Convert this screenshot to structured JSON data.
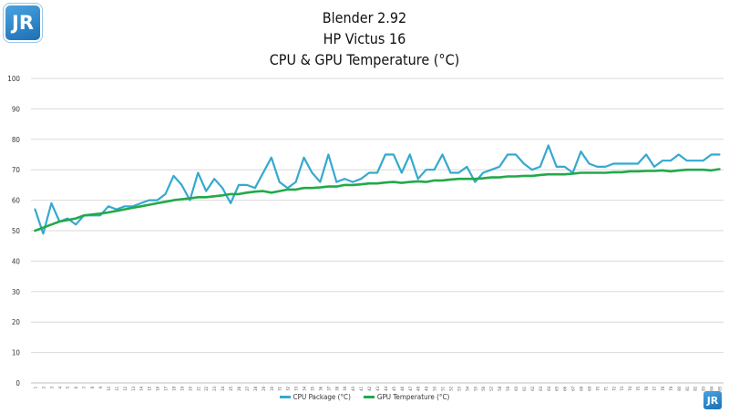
{
  "brand": {
    "logo_text": "JR",
    "logo_color": "#2a86cf"
  },
  "chart_data": {
    "type": "line",
    "title": [
      "Blender 2.92",
      "HP Victus 16",
      "CPU & GPU Temperature (°C)"
    ],
    "ylim": [
      0,
      100
    ],
    "yticks": [
      0,
      10,
      20,
      30,
      40,
      50,
      60,
      70,
      80,
      90,
      100
    ],
    "x": [
      1,
      2,
      3,
      4,
      5,
      6,
      7,
      8,
      9,
      10,
      11,
      12,
      13,
      14,
      15,
      16,
      17,
      18,
      19,
      20,
      21,
      22,
      23,
      24,
      25,
      26,
      27,
      28,
      29,
      30,
      31,
      32,
      33,
      34,
      35,
      36,
      37,
      38,
      39,
      40,
      41,
      42,
      43,
      44,
      45,
      46,
      47,
      48,
      49,
      50,
      51,
      52,
      53,
      54,
      55,
      56,
      57,
      58,
      59,
      60,
      61,
      62,
      63,
      64,
      65,
      66,
      67,
      68,
      69,
      70,
      71,
      72,
      73,
      74,
      75,
      76,
      77,
      78,
      79,
      80,
      81,
      82,
      83,
      84,
      85
    ],
    "grid": true,
    "series": [
      {
        "name": "CPU Package (°C)",
        "color": "#35a9cf",
        "values": [
          57,
          49,
          59,
          53,
          54,
          52,
          55,
          55,
          55,
          58,
          57,
          58,
          58,
          59,
          60,
          60,
          62,
          68,
          65,
          60,
          69,
          63,
          67,
          64,
          59,
          65,
          65,
          64,
          69,
          74,
          66,
          64,
          66,
          74,
          69,
          66,
          75,
          66,
          67,
          66,
          67,
          69,
          69,
          75,
          75,
          69,
          75,
          67,
          70,
          70,
          75,
          69,
          69,
          71,
          66,
          69,
          70,
          71,
          75,
          75,
          72,
          70,
          71,
          78,
          71,
          71,
          69,
          76,
          72,
          71,
          71,
          72,
          72,
          72,
          72,
          75,
          71,
          73,
          73,
          75,
          73,
          73,
          73,
          75,
          75
        ]
      },
      {
        "name": "GPU Temperature (°C)",
        "color": "#22a94a",
        "values": [
          50,
          51,
          52,
          53,
          53.5,
          54,
          55,
          55.3,
          55.6,
          56,
          56.5,
          57,
          57.5,
          58,
          58.5,
          59,
          59.5,
          60,
          60.3,
          60.6,
          61,
          61,
          61.3,
          61.6,
          62,
          62,
          62.5,
          62.8,
          63,
          62.5,
          63,
          63.5,
          63.5,
          64,
          64,
          64.2,
          64.5,
          64.5,
          65,
          65,
          65.2,
          65.5,
          65.5,
          65.8,
          66,
          65.7,
          66,
          66.2,
          66,
          66.5,
          66.5,
          66.8,
          67,
          67,
          67,
          67.2,
          67.5,
          67.5,
          67.8,
          67.8,
          68,
          68,
          68.3,
          68.5,
          68.5,
          68.5,
          68.7,
          69,
          69,
          69,
          69,
          69.2,
          69.2,
          69.5,
          69.5,
          69.6,
          69.6,
          69.8,
          69.5,
          69.8,
          70,
          70,
          70,
          69.8,
          70.2
        ]
      }
    ]
  }
}
